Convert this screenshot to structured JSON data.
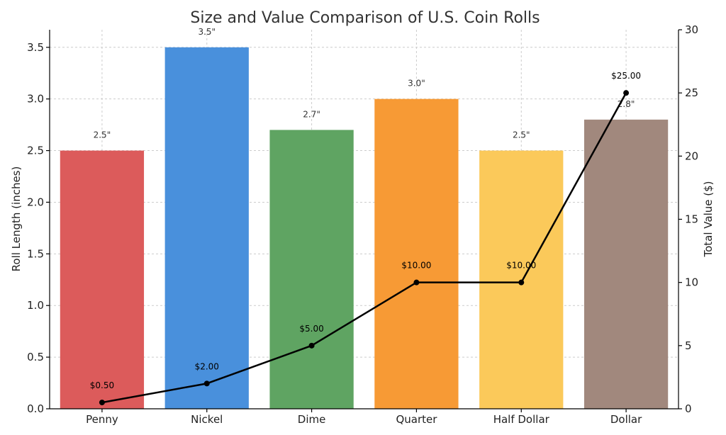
{
  "chart_data": {
    "type": "bar",
    "title": "Size and Value Comparison of U.S. Coin Rolls",
    "xlabel": "",
    "ylabel": "Roll Length (inches)",
    "y2label": "Total Value ($)",
    "categories": [
      "Penny",
      "Nickel",
      "Dime",
      "Quarter",
      "Half Dollar",
      "Dollar"
    ],
    "series": [
      {
        "type": "bar",
        "axis": "left",
        "values": [
          2.5,
          3.5,
          2.7,
          3.0,
          2.5,
          2.8
        ],
        "labels": [
          "2.5\"",
          "3.5\"",
          "2.7\"",
          "3.0\"",
          "2.5\"",
          "2.8\""
        ],
        "colors": [
          "#dc5b5b",
          "#4990dc",
          "#5fa462",
          "#f79a35",
          "#fbc95a",
          "#a1887d"
        ]
      },
      {
        "type": "line",
        "axis": "right",
        "values": [
          0.5,
          2.0,
          5.0,
          10.0,
          10.0,
          25.0
        ],
        "labels": [
          "$0.50",
          "$2.00",
          "$5.00",
          "$10.00",
          "$10.00",
          "$25.00"
        ],
        "color": "#000000"
      }
    ],
    "ylim": [
      0,
      3.67
    ],
    "yticks": [
      "0.0",
      "0.5",
      "1.0",
      "1.5",
      "2.0",
      "2.5",
      "3.0",
      "3.5"
    ],
    "y2lim": [
      0,
      30
    ],
    "y2ticks": [
      "0",
      "5",
      "10",
      "15",
      "20",
      "25",
      "30"
    ],
    "grid": true
  }
}
